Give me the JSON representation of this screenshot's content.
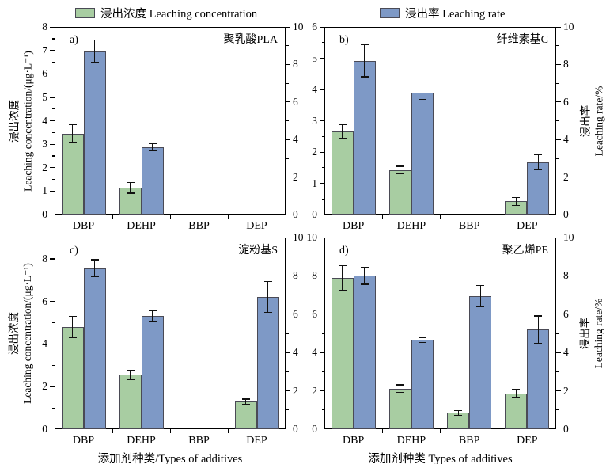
{
  "legend": {
    "items": [
      {
        "label": "浸出浓度 Leaching concentration",
        "color": "#a8cda2"
      },
      {
        "label": "浸出率 Leaching rate",
        "color": "#7e99c6"
      }
    ]
  },
  "colors": {
    "concentration_fill": "#a8cda2",
    "rate_fill": "#7e99c6",
    "bar_border": "#4a4a55",
    "axis": "#000000",
    "error_bar": "#111111"
  },
  "chart_data": [
    {
      "id": "a",
      "type": "bar",
      "corner_label": "a)",
      "title": "聚乳酸PLA",
      "categories": [
        "DBP",
        "DEHP",
        "BBP",
        "DEP"
      ],
      "xlabel": "",
      "left_axis": {
        "label_cn": "浸出浓度",
        "label_en": "Leaching concentration/(μg·L⁻¹)",
        "min": 0,
        "max": 8,
        "major_step": 1,
        "minor_step": 0.5,
        "show_labels": true
      },
      "right_axis": {
        "label_cn": "",
        "label_en": "",
        "min": 0,
        "max": 10,
        "major_step": 2,
        "minor_step": 1,
        "show_labels": true
      },
      "series": [
        {
          "name": "浸出浓度 Leaching concentration",
          "axis": "left",
          "color": "#a8cda2",
          "values": [
            3.45,
            1.15,
            null,
            null
          ],
          "errors": [
            0.38,
            0.23,
            null,
            null
          ]
        },
        {
          "name": "浸出率 Leaching rate",
          "axis": "right",
          "color": "#7e99c6",
          "values": [
            8.7,
            3.6,
            null,
            null
          ],
          "errors": [
            0.6,
            0.2,
            null,
            null
          ]
        }
      ]
    },
    {
      "id": "b",
      "type": "bar",
      "corner_label": "b)",
      "title": "纤维素基C",
      "categories": [
        "DBP",
        "DEHP",
        "BBP",
        "DEP"
      ],
      "xlabel": "",
      "left_axis": {
        "label_cn": "",
        "label_en": "",
        "min": 0,
        "max": 6,
        "major_step": 1,
        "minor_step": 0.5,
        "show_labels": true
      },
      "right_axis": {
        "label_cn": "浸出率",
        "label_en": "Leaching rate/%",
        "min": 0,
        "max": 10,
        "major_step": 2,
        "minor_step": 1,
        "show_labels": true
      },
      "series": [
        {
          "name": "浸出浓度 Leaching concentration",
          "axis": "left",
          "color": "#a8cda2",
          "values": [
            2.67,
            1.43,
            null,
            0.42
          ],
          "errors": [
            0.22,
            0.12,
            null,
            0.12
          ]
        },
        {
          "name": "浸出率 Leaching rate",
          "axis": "right",
          "color": "#7e99c6",
          "values": [
            8.2,
            6.5,
            null,
            2.8
          ],
          "errors": [
            0.85,
            0.35,
            null,
            0.4
          ]
        }
      ]
    },
    {
      "id": "c",
      "type": "bar",
      "corner_label": "c)",
      "title": "淀粉基S",
      "categories": [
        "DBP",
        "DEHP",
        "BBP",
        "DEP"
      ],
      "xlabel": "添加剂种类/Types of additives",
      "left_axis": {
        "label_cn": "浸出浓度",
        "label_en": "Leaching concentration/(μg·L⁻¹)",
        "min": 0,
        "max": 9,
        "major_step": 2,
        "minor_step": 1,
        "show_labels": true
      },
      "right_axis": {
        "label_cn": "",
        "label_en": "",
        "min": 0,
        "max": 10,
        "major_step": 2,
        "minor_step": 1,
        "show_labels": true
      },
      "series": [
        {
          "name": "浸出浓度 Leaching concentration",
          "axis": "left",
          "color": "#a8cda2",
          "values": [
            4.8,
            2.55,
            null,
            1.3
          ],
          "errors": [
            0.5,
            0.22,
            null,
            0.12
          ]
        },
        {
          "name": "浸出率 Leaching rate",
          "axis": "right",
          "color": "#7e99c6",
          "values": [
            8.4,
            5.9,
            null,
            6.9
          ],
          "errors": [
            0.45,
            0.28,
            null,
            0.8
          ]
        }
      ]
    },
    {
      "id": "d",
      "type": "bar",
      "corner_label": "d)",
      "title": "聚乙烯PE",
      "categories": [
        "DBP",
        "DEHP",
        "BBP",
        "DEP"
      ],
      "xlabel": "添加剂种类 Types of additives",
      "left_axis": {
        "label_cn": "",
        "label_en": "",
        "min": 0,
        "max": 10,
        "major_step": 2,
        "minor_step": 1,
        "show_labels": true
      },
      "right_axis": {
        "label_cn": "浸出率",
        "label_en": "Leaching rate/%",
        "min": 0,
        "max": 10,
        "major_step": 2,
        "minor_step": 1,
        "show_labels": true
      },
      "series": [
        {
          "name": "浸出浓度 Leaching concentration",
          "axis": "left",
          "color": "#a8cda2",
          "values": [
            7.88,
            2.12,
            0.85,
            1.88
          ],
          "errors": [
            0.65,
            0.2,
            0.12,
            0.22
          ]
        },
        {
          "name": "浸出率 Leaching rate",
          "axis": "right",
          "color": "#7e99c6",
          "values": [
            8.0,
            4.65,
            6.95,
            5.2
          ],
          "errors": [
            0.43,
            0.12,
            0.55,
            0.72
          ]
        }
      ]
    }
  ]
}
